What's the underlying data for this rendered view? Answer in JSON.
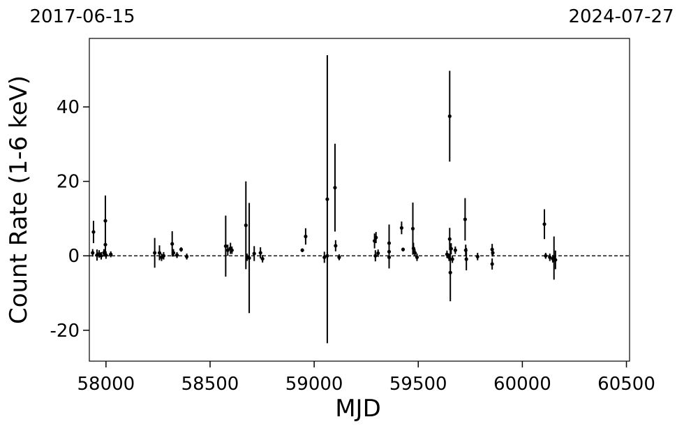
{
  "chart_data": {
    "type": "scatter",
    "xlabel": "MJD",
    "ylabel": "Count Rate (1-6 keV)",
    "annotations": [
      "2017-06-15",
      "2024-07-27"
    ],
    "color": "#000000",
    "hline": 0,
    "xlim": [
      57920,
      60515
    ],
    "ylim": [
      -28.3,
      58.4
    ],
    "xticks": [
      58000,
      58500,
      59000,
      59500,
      60000,
      60500
    ],
    "yticks": [
      -20,
      0,
      20,
      40
    ],
    "x": [
      57940,
      57936,
      57957,
      57967,
      57977,
      57990,
      57997,
      57997,
      58000,
      58023,
      58234,
      58257,
      58267,
      58277,
      58318,
      58324,
      58341,
      58361,
      58388,
      58575,
      58585,
      58598,
      58605,
      58672,
      58678,
      58688,
      58712,
      58742,
      58752,
      58943,
      58959,
      59049,
      59063,
      59063,
      59100,
      59103,
      59120,
      59290,
      59297,
      59294,
      59307,
      59360,
      59360,
      59360,
      59420,
      59427,
      59474,
      59477,
      59484,
      59494,
      59638,
      59648,
      59651,
      59651,
      59654,
      59658,
      59664,
      59678,
      59725,
      59728,
      59731,
      59785,
      59855,
      59855,
      59858,
      60106,
      60112,
      60132,
      60146,
      60152,
      60159
    ],
    "values": [
      6.4,
      0.8,
      0.2,
      0.5,
      0,
      0.8,
      9.4,
      3,
      0.2,
      0.4,
      0.8,
      0.8,
      -0.4,
      0,
      3.2,
      0.8,
      0.2,
      1.7,
      -0.2,
      2.6,
      1.5,
      2,
      1.5,
      8.2,
      -0.4,
      -0.6,
      0.6,
      0.8,
      -0.8,
      1.5,
      5.2,
      -0.4,
      15.2,
      0,
      18.3,
      2.7,
      -0.4,
      4,
      4.9,
      0,
      0.7,
      3.4,
      1.1,
      -0.4,
      7.5,
      1.7,
      7.3,
      2,
      0.8,
      -0.4,
      0.4,
      -0.4,
      37.5,
      4.5,
      -4.5,
      1.9,
      -0.9,
      1.5,
      9.8,
      1.5,
      -0.9,
      -0.2,
      -2.2,
      1.7,
      0.8,
      8.5,
      0,
      -0.4,
      -0.8,
      -0.6,
      -1.1
    ],
    "errors": [
      3,
      1,
      1.5,
      1,
      1,
      1,
      6.8,
      2,
      1,
      0.8,
      4,
      2,
      1,
      1,
      3.4,
      1,
      0.8,
      0.6,
      0.8,
      8.2,
      1.5,
      1.5,
      1,
      11.8,
      1,
      14.8,
      2,
      1.5,
      1,
      0.5,
      2.2,
      1.5,
      38.7,
      1,
      11.8,
      1.5,
      0.8,
      2,
      1.5,
      1.5,
      1,
      5,
      1.5,
      3,
      1.7,
      0.5,
      7,
      1.5,
      1,
      1,
      1,
      1,
      12.2,
      3,
      7.7,
      1.5,
      1,
      1,
      5.7,
      1.5,
      3,
      1,
      1.5,
      1.5,
      1,
      4,
      0.8,
      1,
      1,
      5.8,
      2.5
    ]
  }
}
